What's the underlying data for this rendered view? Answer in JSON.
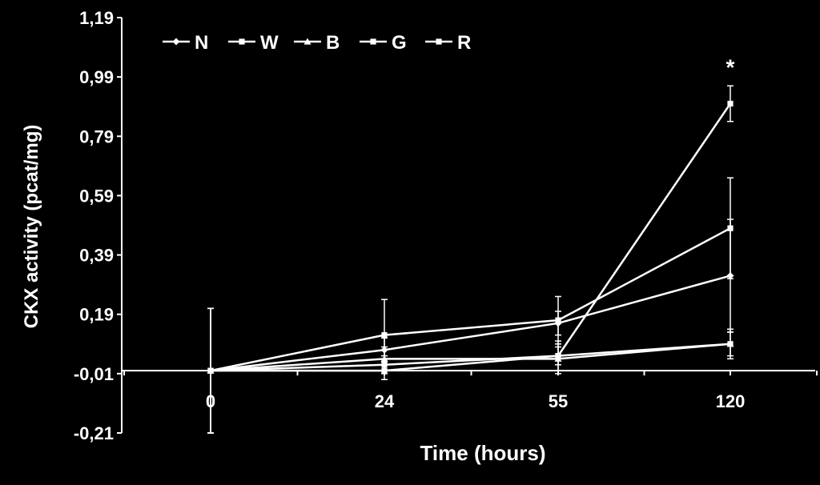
{
  "chart_data": {
    "type": "line",
    "title": "",
    "xlabel": "Time (hours)",
    "ylabel": "CKX activity (pcat/mg)",
    "x": [
      0,
      24,
      55,
      120
    ],
    "x_tick_labels": [
      "0",
      "24",
      "55",
      "120"
    ],
    "y_tick_labels": [
      "1,19",
      "0,99",
      "0,79",
      "0,59",
      "0,39",
      "0,19",
      "-0,01",
      "-0,21"
    ],
    "ylim": [
      -0.21,
      1.19
    ],
    "grid": false,
    "legend_position": "top-left",
    "line_color": "#ffffff",
    "background_color": "#000000",
    "series": [
      {
        "name": "N",
        "marker": "diamond",
        "values": [
          0.0,
          0.07,
          0.16,
          0.32
        ],
        "errors": [
          0.21,
          0.04,
          0.04,
          0.19
        ]
      },
      {
        "name": "W",
        "marker": "square",
        "values": [
          0.0,
          0.12,
          0.17,
          0.48
        ],
        "errors": [
          0.21,
          0.12,
          0.08,
          0.17
        ]
      },
      {
        "name": "B",
        "marker": "triangle",
        "values": [
          0.0,
          0.04,
          0.04,
          0.09
        ],
        "errors": [
          0.21,
          0.04,
          0.05,
          0.05
        ]
      },
      {
        "name": "G",
        "marker": "square",
        "values": [
          0.0,
          0.02,
          0.05,
          0.09
        ],
        "errors": [
          0.21,
          0.03,
          0.03,
          0.04
        ]
      },
      {
        "name": "R",
        "marker": "square",
        "values": [
          0.0,
          0.0,
          0.05,
          0.9
        ],
        "errors": [
          0.21,
          0.03,
          0.05,
          0.06
        ]
      }
    ],
    "annotations": [
      {
        "text": "*",
        "x": 120,
        "y": 1.03
      }
    ]
  }
}
